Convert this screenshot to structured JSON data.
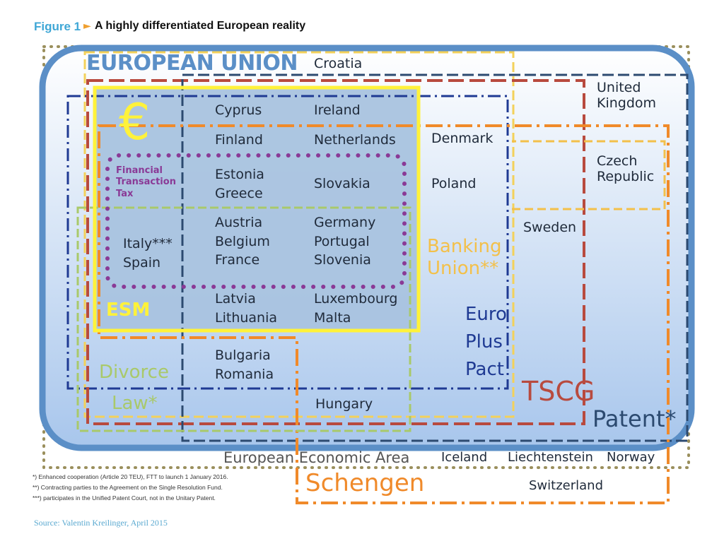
{
  "figure": {
    "number": "Figure 1",
    "arrow": "►",
    "title": "A highly differentiated European reality"
  },
  "groups": {
    "eu": "EUROPEAN UNION",
    "euro_symbol": "€",
    "ftt": [
      "Financial",
      "Transaction",
      "Tax"
    ],
    "esm": "ESM",
    "banking_union": [
      "Banking",
      "Union**"
    ],
    "euro_plus_pact": [
      "Euro",
      "Plus",
      "Pact"
    ],
    "divorce_law": [
      "Divorce",
      "Law*"
    ],
    "tscg": "TSCG",
    "patent": "Patent*",
    "eea": "European Economic Area",
    "schengen": "Schengen"
  },
  "countries": {
    "croatia": "Croatia",
    "united_kingdom": [
      "United",
      "Kingdom"
    ],
    "cyprus": "Cyprus",
    "ireland": "Ireland",
    "finland": "Finland",
    "netherlands": "Netherlands",
    "denmark": "Denmark",
    "czech_republic": [
      "Czech",
      "Republic"
    ],
    "estonia_greece": [
      "Estonia",
      "Greece"
    ],
    "slovakia": "Slovakia",
    "poland": "Poland",
    "sweden": "Sweden",
    "italy_spain": [
      "Italy***",
      "Spain"
    ],
    "austria_belgium_france": [
      "Austria",
      "Belgium",
      "France"
    ],
    "germany_portugal_slovenia": [
      "Germany",
      "Portugal",
      "Slovenia"
    ],
    "latvia_lithuania": [
      "Latvia",
      "Lithuania"
    ],
    "luxembourg_malta": [
      "Luxembourg",
      "Malta"
    ],
    "bulgaria_romania": [
      "Bulgaria",
      "Romania"
    ],
    "hungary": "Hungary",
    "iceland": "Iceland",
    "liechtenstein": "Liechtenstein",
    "norway": "Norway",
    "switzerland": "Switzerland"
  },
  "footnotes": [
    "*) Enhanced cooperation (Article 20 TEU), FTT to launch 1 January 2016.",
    "**) Contracting parties to the Agreement on the Single Resolution Fund.",
    "***) participates in the Unified Patent Court, not in the Unitary Patent."
  ],
  "source": "Source: Valentin Kreilinger, April 2015",
  "colors": {
    "eu_border": "#5b8fc7",
    "eurozone_fill": "#a9c3df",
    "esm_yellow": "#fff23a",
    "ftt_purple": "#8a3a96",
    "banking_union": "#f3c04a",
    "euro_plus_pact": "#1f3a93",
    "divorce_law": "#a9c96a",
    "tscg": "#b84a3e",
    "patent": "#2c4a70",
    "eea": "#9a8f5c",
    "schengen": "#f08a2a"
  }
}
